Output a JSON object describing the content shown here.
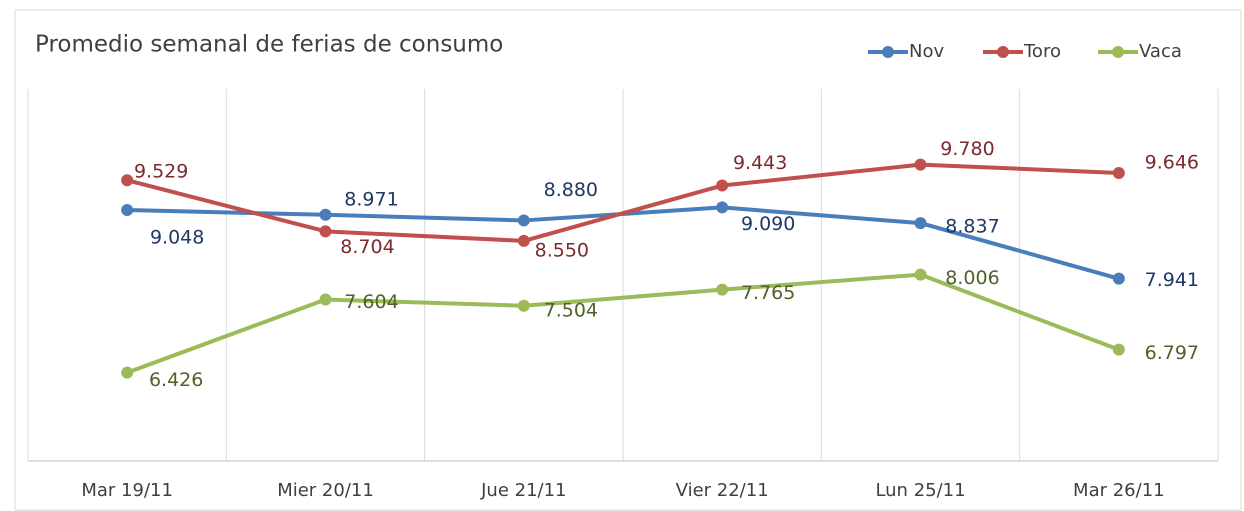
{
  "chart_data": {
    "type": "line",
    "title": "Promedio semanal de ferias de consumo",
    "categories": [
      "Mar 19/11",
      "Mier 20/11",
      "Jue 21/11",
      "Vier 22/11",
      "Lun 25/11",
      "Mar 26/11"
    ],
    "series": [
      {
        "name": "Nov",
        "color": "#4a7ebb",
        "values": [
          9.048,
          8.971,
          8.88,
          9.09,
          8.837,
          7.941
        ],
        "value_labels": [
          "9.048",
          "8.971",
          "8.880",
          "9.090",
          "8.837",
          "7.941"
        ]
      },
      {
        "name": "Toro",
        "color": "#c0504d",
        "values": [
          9.529,
          8.704,
          8.55,
          9.443,
          9.78,
          9.646
        ],
        "value_labels": [
          "9.529",
          "8.704",
          "8.550",
          "9.443",
          "9.780",
          "9.646"
        ]
      },
      {
        "name": "Vaca",
        "color": "#9bbb59",
        "values": [
          6.426,
          7.604,
          7.504,
          7.765,
          8.006,
          6.797
        ],
        "value_labels": [
          "6.426",
          "7.604",
          "7.504",
          "7.765",
          "8.006",
          "6.797"
        ]
      }
    ],
    "ylim": [
      5,
      11
    ],
    "legend": "top-right",
    "grid": true
  }
}
